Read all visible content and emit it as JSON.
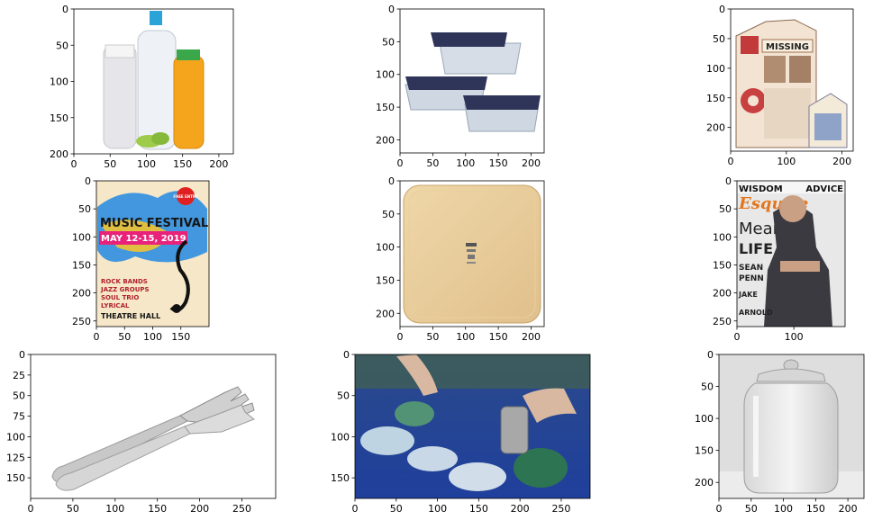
{
  "figure": {
    "background": "#ffffff",
    "axes_color": "#000000"
  },
  "chart_data": [
    {
      "type": "image",
      "image": "plastic bottles of milk, water and orange juice with lime slices",
      "xlim": [
        0,
        220
      ],
      "ylim": [
        200,
        0
      ],
      "xticks": [
        0,
        50,
        100,
        150,
        200
      ],
      "yticks": [
        0,
        50,
        100,
        150,
        200
      ]
    },
    {
      "type": "image",
      "image": "glass food storage containers with navy lids",
      "xlim": [
        0,
        220
      ],
      "ylim": [
        220,
        0
      ],
      "xticks": [
        0,
        50,
        100,
        150,
        200
      ],
      "yticks": [
        0,
        50,
        100,
        150,
        200
      ]
    },
    {
      "type": "image",
      "image": "milk cartons with missing persons notice",
      "carton_text": "MISSING",
      "xlim": [
        0,
        220
      ],
      "ylim": [
        240,
        0
      ],
      "xticks": [
        0,
        100,
        200
      ],
      "yticks": [
        0,
        50,
        100,
        150,
        200
      ]
    },
    {
      "type": "image",
      "image": "music festival poster",
      "poster_text": {
        "title": "MUSIC FESTIVAL",
        "dates": "MAY 12-15, 2019",
        "badge": "FREE ENTRY",
        "lineup": [
          "ROCK BANDS",
          "JAZZ GROUPS",
          "SOUL TRIO",
          "LYRICAL"
        ],
        "venue": "THEATRE HALL"
      },
      "xlim": [
        0,
        200
      ],
      "ylim": [
        260,
        0
      ],
      "xticks": [
        0,
        50,
        100,
        150
      ],
      "yticks": [
        0,
        50,
        100,
        150,
        200,
        250
      ]
    },
    {
      "type": "image",
      "image": "square wooden tray",
      "xlim": [
        0,
        220
      ],
      "ylim": [
        220,
        0
      ],
      "xticks": [
        0,
        50,
        100,
        150,
        200
      ],
      "yticks": [
        0,
        50,
        100,
        150,
        200
      ]
    },
    {
      "type": "image",
      "image": "Esquire magazine cover",
      "cover_text": {
        "masthead": "Esquire",
        "banner": "WISDOM",
        "banner_right": "ADVICE",
        "headline": "Meaning",
        "headline_2": "LIFE",
        "names": [
          "SEAN",
          "PENN",
          "JAKE",
          "ARNOLD"
        ]
      },
      "xlim": [
        0,
        190
      ],
      "ylim": [
        260,
        0
      ],
      "xticks": [
        0,
        100
      ],
      "yticks": [
        0,
        50,
        100,
        150,
        200,
        250
      ]
    },
    {
      "type": "image",
      "image": "stainless steel forks",
      "xlim": [
        0,
        290
      ],
      "ylim": [
        175,
        0
      ],
      "xticks": [
        0,
        50,
        100,
        150,
        200,
        250
      ],
      "yticks": [
        0,
        25,
        50,
        75,
        100,
        125,
        150
      ]
    },
    {
      "type": "image",
      "image": "recycling bin with plastic and glass bottles and a tin can",
      "xlim": [
        0,
        285
      ],
      "ylim": [
        175,
        0
      ],
      "xticks": [
        0,
        50,
        100,
        150,
        200,
        250
      ],
      "yticks": [
        0,
        50,
        100,
        150
      ]
    },
    {
      "type": "image",
      "image": "glass jar with lid",
      "xlim": [
        0,
        225
      ],
      "ylim": [
        225,
        0
      ],
      "xticks": [
        0,
        50,
        100,
        150,
        200
      ],
      "yticks": [
        0,
        50,
        100,
        150,
        200
      ]
    }
  ]
}
